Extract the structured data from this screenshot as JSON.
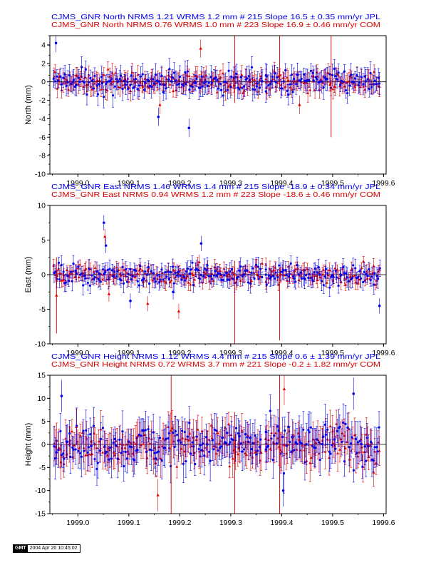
{
  "colors": {
    "jpl": "#0000ee",
    "com": "#dd0000",
    "axis": "#000000"
  },
  "x_ticks": [
    "1999.0",
    "1999.1",
    "1999.2",
    "1999.3",
    "1999.4",
    "1999.5",
    "1999.6"
  ],
  "stamp": {
    "logo": "GMT",
    "text": "2004 Apr 20 10:45:02"
  },
  "chart_data": [
    {
      "type": "scatter",
      "component": "north",
      "ylabel": "North (mm)",
      "xlim": [
        1998.945,
        1999.605
      ],
      "ylim": [
        -10,
        5
      ],
      "y_ticks": [
        "4",
        "2",
        "0",
        "-2",
        "-4",
        "-6",
        "-8",
        "-10"
      ],
      "grid": false,
      "legend": "top",
      "legend_lines": [
        {
          "series": "jpl",
          "text": "CJMS_GNR North NRMS 1.21 WRMS  1.2 mm # 215 Slope   16.5 ±  0.35 mm/yr JPL"
        },
        {
          "series": "com",
          "text": "CJMS_GNR North NRMS 0.76 WRMS  1.0 mm # 223 Slope   16.9 ±  0.46 mm/yr COM"
        }
      ],
      "series": [
        {
          "name": "JPL",
          "n": 215,
          "rms": 1.2,
          "err": 1.0
        },
        {
          "name": "COM",
          "n": 223,
          "rms": 1.0,
          "err": 0.85
        }
      ],
      "outliers": [
        {
          "x": 1999.158,
          "y": -3.8
        },
        {
          "x": 1999.161,
          "y": -2.5
        },
        {
          "x": 1999.218,
          "y": -5.0
        },
        {
          "x": 1999.241,
          "y": 3.6
        },
        {
          "x": 1998.957,
          "y": 4.2
        },
        {
          "x": 1999.435,
          "y": -2.5
        }
      ],
      "gaps": [
        [
          1999.362,
          1999.368
        ]
      ],
      "spikes": [
        {
          "x": 1999.308,
          "y0": -2.3,
          "y1": 5.0
        },
        {
          "x": 1999.396,
          "y0": -1.0,
          "y1": 5.0
        },
        {
          "x": 1999.497,
          "y0": -6.0,
          "y1": 5.0
        }
      ]
    },
    {
      "type": "scatter",
      "component": "east",
      "ylabel": "East (mm)",
      "xlim": [
        1998.945,
        1999.605
      ],
      "ylim": [
        -10,
        10
      ],
      "y_ticks": [
        "10",
        "5",
        "0",
        "-5",
        "-10"
      ],
      "grid": false,
      "legend": "top",
      "legend_lines": [
        {
          "series": "jpl",
          "text": "CJMS_GNR East NRMS 1.46 WRMS  1.4 mm # 215 Slope  -18.9 ±  0.34 mm/yr JPL"
        },
        {
          "series": "com",
          "text": "CJMS_GNR East NRMS 0.94 WRMS  1.2 mm # 223 Slope  -18.6 ±  0.46 mm/yr COM"
        }
      ],
      "series": [
        {
          "name": "JPL",
          "n": 215,
          "rms": 1.4,
          "err": 1.1
        },
        {
          "name": "COM",
          "n": 223,
          "rms": 1.2,
          "err": 0.9
        }
      ],
      "outliers": [
        {
          "x": 1999.051,
          "y": 7.5
        },
        {
          "x": 1999.053,
          "y": 5.5
        },
        {
          "x": 1999.055,
          "y": 4.2
        },
        {
          "x": 1999.061,
          "y": -2.8
        },
        {
          "x": 1999.103,
          "y": -3.8
        },
        {
          "x": 1999.137,
          "y": -4.2
        },
        {
          "x": 1999.187,
          "y": -2.5
        },
        {
          "x": 1999.198,
          "y": -5.3
        },
        {
          "x": 1999.242,
          "y": 4.5
        },
        {
          "x": 1999.238,
          "y": 1.8
        },
        {
          "x": 1999.592,
          "y": -4.5
        },
        {
          "x": 1998.958,
          "y": -3.0
        }
      ],
      "gaps": [
        [
          1999.362,
          1999.368
        ]
      ],
      "spikes": [
        {
          "x": 1999.308,
          "y0": -10.0,
          "y1": 2.0
        },
        {
          "x": 1999.396,
          "y0": -9.5,
          "y1": 1.0
        },
        {
          "x": 1998.958,
          "y0": -8.5,
          "y1": 2.5
        }
      ]
    },
    {
      "type": "scatter",
      "component": "height",
      "ylabel": "Height (mm)",
      "xlim": [
        1998.945,
        1999.605
      ],
      "ylim": [
        -15,
        15
      ],
      "y_ticks": [
        "15",
        "10",
        "5",
        "0",
        "-5",
        "-10",
        "-15"
      ],
      "grid": false,
      "legend": "top",
      "legend_lines": [
        {
          "series": "jpl",
          "text": "CJMS_GNR Height NRMS 1.12 WRMS  4.4 mm # 215 Slope    0.6 ±  1.39 mm/yr JPL"
        },
        {
          "series": "com",
          "text": "CJMS_GNR Height NRMS 0.72 WRMS  3.7 mm # 221 Slope   -0.2 ±  1.82 mm/yr COM"
        }
      ],
      "series": [
        {
          "name": "JPL",
          "n": 215,
          "rms": 4.4,
          "err": 3.5
        },
        {
          "name": "COM",
          "n": 221,
          "rms": 3.7,
          "err": 3.2
        }
      ],
      "outliers": [
        {
          "x": 1998.968,
          "y": 10.5
        },
        {
          "x": 1999.405,
          "y": 12.0
        },
        {
          "x": 1999.403,
          "y": -10.0
        },
        {
          "x": 1999.157,
          "y": -11.0
        },
        {
          "x": 1999.541,
          "y": 11.0
        }
      ],
      "gaps": [
        [
          1999.362,
          1999.368
        ]
      ],
      "spikes": [
        {
          "x": 1999.183,
          "y0": -15.0,
          "y1": 15.0
        },
        {
          "x": 1999.308,
          "y0": -15.0,
          "y1": 7.0
        },
        {
          "x": 1999.396,
          "y0": -15.0,
          "y1": 15.0
        }
      ]
    }
  ]
}
